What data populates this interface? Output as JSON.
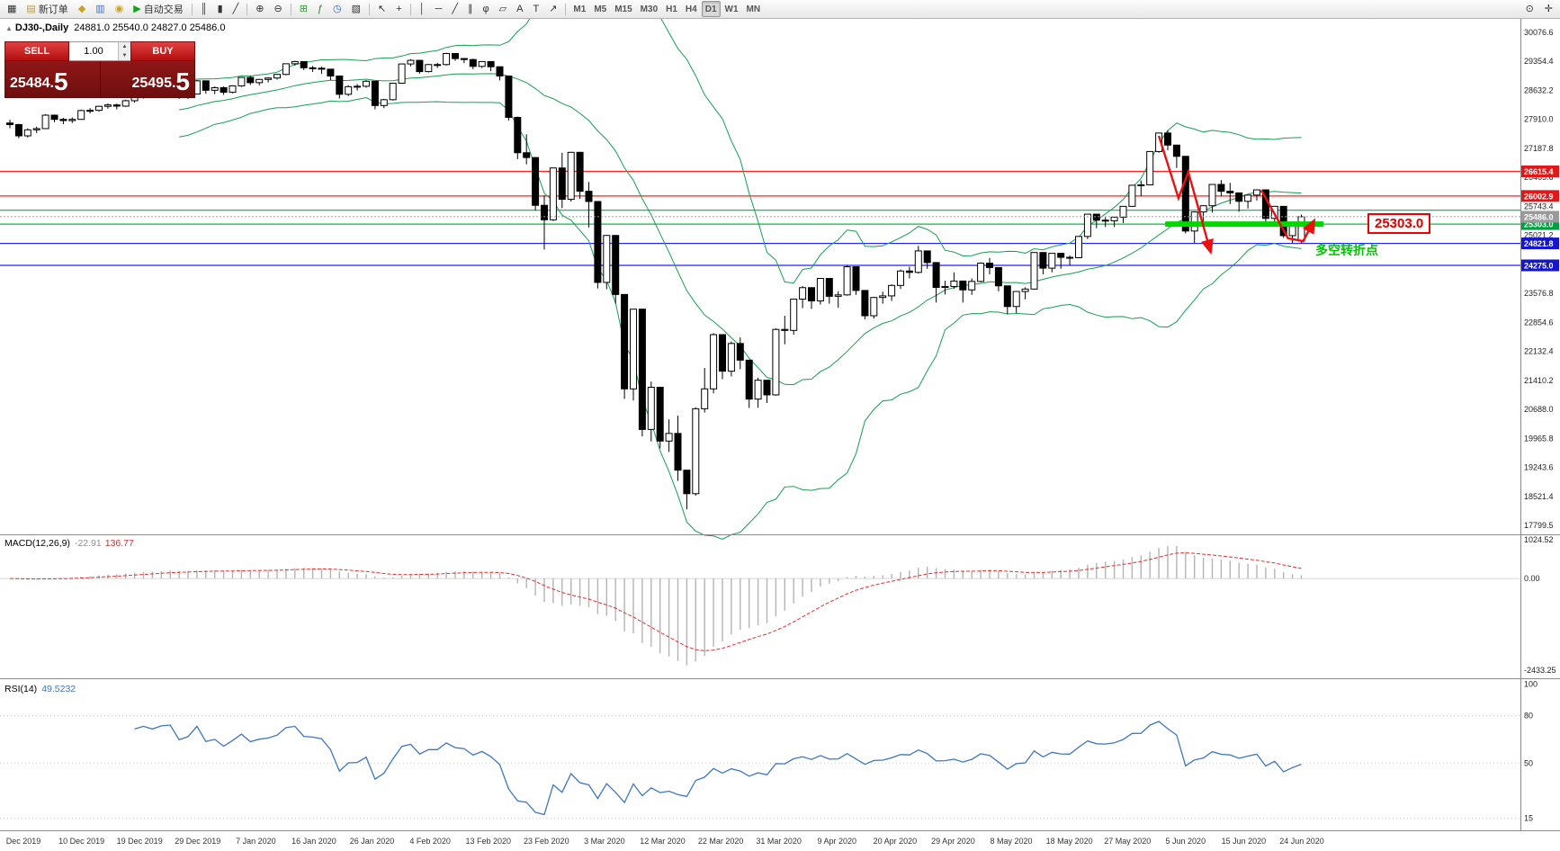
{
  "colors": {
    "band_green": "#169e50",
    "candle_up": "#ffffff",
    "candle_down": "#000000",
    "candle_border": "#000000",
    "thick_green": "#00d800",
    "arrow_red": "#e81010",
    "macd_hist": "#b4b4b4",
    "macd_signal": "#e03030",
    "rsi_blue": "#3e75c3",
    "panel_red": "#8a1515",
    "button_red": "#cc1111",
    "current_price_grey": "#9a9a9a"
  },
  "toolbar": {
    "left_items": [
      {
        "name": "chart-window-icon",
        "glyph": "▦"
      },
      {
        "name": "new-order-button",
        "glyph": "▤",
        "glyph_color": "#b59a4a",
        "label": "新订单"
      },
      {
        "name": "gold-icon",
        "glyph": "◆",
        "glyph_color": "#c9a227"
      },
      {
        "name": "report-icon",
        "glyph": "▥",
        "glyph_color": "#3d6fca"
      },
      {
        "name": "community-icon",
        "glyph": "◉",
        "glyph_color": "#c9a227"
      },
      {
        "name": "auto-trading-button",
        "glyph": "▶",
        "glyph_color": "#18a018",
        "label": "自动交易"
      },
      {
        "type": "sep"
      },
      {
        "name": "bar-chart-icon",
        "glyph": "║"
      },
      {
        "name": "candlestick-chart-icon",
        "glyph": "▮"
      },
      {
        "name": "line-chart-icon",
        "glyph": "╱"
      },
      {
        "type": "sep"
      },
      {
        "name": "zoom-in-icon",
        "glyph": "⊕"
      },
      {
        "name": "zoom-out-icon",
        "glyph": "⊖"
      },
      {
        "type": "sep"
      },
      {
        "name": "tile-windows-icon",
        "glyph": "⊞",
        "glyph_color": "#2e9e2e"
      },
      {
        "name": "indicators-icon",
        "glyph": "ƒ",
        "glyph_color": "#2e7e2e"
      },
      {
        "name": "periods-icon",
        "glyph": "◷",
        "glyph_color": "#2e5eae"
      },
      {
        "name": "template-icon",
        "glyph": "▧"
      },
      {
        "type": "sep"
      },
      {
        "name": "cursor-icon",
        "glyph": "↖"
      },
      {
        "name": "crosshair-icon",
        "glyph": "+"
      },
      {
        "type": "sep"
      },
      {
        "name": "vertical-line-icon",
        "glyph": "│"
      },
      {
        "name": "horizontal-line-icon",
        "glyph": "─"
      },
      {
        "name": "trendline-icon",
        "glyph": "╱"
      },
      {
        "name": "channel-icon",
        "glyph": "∥"
      },
      {
        "name": "fibonacci-icon",
        "glyph": "φ"
      },
      {
        "name": "shapes-icon",
        "glyph": "▱"
      },
      {
        "name": "text-icon",
        "glyph": "A"
      },
      {
        "name": "label-icon",
        "glyph": "T"
      },
      {
        "name": "arrows-icon",
        "glyph": "↗"
      },
      {
        "type": "sep"
      },
      {
        "name": "tf-m1-button",
        "label": "M1",
        "tf": true
      },
      {
        "name": "tf-m5-button",
        "label": "M5",
        "tf": true
      },
      {
        "name": "tf-m15-button",
        "label": "M15",
        "tf": true
      },
      {
        "name": "tf-m30-button",
        "label": "M30",
        "tf": true
      },
      {
        "name": "tf-h1-button",
        "label": "H1",
        "tf": true
      },
      {
        "name": "tf-h4-button",
        "label": "H4",
        "tf": true
      },
      {
        "name": "tf-d1-button",
        "label": "D1",
        "tf": true,
        "active": true
      },
      {
        "name": "tf-w1-button",
        "label": "W1",
        "tf": true
      },
      {
        "name": "tf-mn-button",
        "label": "MN",
        "tf": true
      }
    ],
    "right_items": [
      {
        "name": "search-icon",
        "glyph": "⊙"
      },
      {
        "name": "pan-icon",
        "glyph": "✛"
      }
    ]
  },
  "chart_info": {
    "symbol": "DJ30-,Daily",
    "ohlc": "24881.0 25540.0 24827.0 25486.0"
  },
  "quote_panel": {
    "sell_label": "SELL",
    "buy_label": "BUY",
    "volume": "1.00",
    "sell_price_main": "25484.",
    "sell_price_big": "5",
    "buy_price_main": "25495.",
    "buy_price_big": "5"
  },
  "annotations": {
    "price_callout": "25303.0",
    "cn_note": "多空转折点"
  },
  "macd_label": {
    "name": "MACD(12,26,9)",
    "main_value": "-22.91",
    "signal_value": "136.77"
  },
  "rsi_label": {
    "name": "RSI(14)",
    "value": "49.5232"
  },
  "chart_data": {
    "type": "candlestick",
    "title": "DJ30-,Daily",
    "price_range": [
      17622,
      30390
    ],
    "price_axis_labels": [
      {
        "v": 30076.6,
        "t": "30076.6"
      },
      {
        "v": 29354.4,
        "t": "29354.4"
      },
      {
        "v": 28632.2,
        "t": "28632.2"
      },
      {
        "v": 27910.0,
        "t": "27910.0"
      },
      {
        "v": 27187.8,
        "t": "27187.8"
      },
      {
        "v": 26465.6,
        "t": "26465.6"
      },
      {
        "v": 25743.4,
        "t": "25743.4"
      },
      {
        "v": 25021.2,
        "t": "25021.2"
      },
      {
        "v": 23576.8,
        "t": "23576.8"
      },
      {
        "v": 22854.6,
        "t": "22854.6"
      },
      {
        "v": 22132.4,
        "t": "22132.4"
      },
      {
        "v": 21410.2,
        "t": "21410.2"
      },
      {
        "v": 20688.0,
        "t": "20688.0"
      },
      {
        "v": 19965.8,
        "t": "19965.8"
      },
      {
        "v": 19243.6,
        "t": "19243.6"
      },
      {
        "v": 18521.4,
        "t": "18521.4"
      },
      {
        "v": 17799.5,
        "t": "17799.5"
      }
    ],
    "x_tick_labels": [
      "Dec 2019",
      "10 Dec 2019",
      "19 Dec 2019",
      "29 Dec 2019",
      "7 Jan 2020",
      "16 Jan 2020",
      "26 Jan 2020",
      "4 Feb 2020",
      "13 Feb 2020",
      "23 Feb 2020",
      "3 Mar 2020",
      "12 Mar 2020",
      "22 Mar 2020",
      "31 Mar 2020",
      "9 Apr 2020",
      "20 Apr 2020",
      "29 Apr 2020",
      "8 May 2020",
      "18 May 2020",
      "27 May 2020",
      "5 Jun 2020",
      "15 Jun 2020",
      "24 Jun 2020"
    ],
    "hlines": [
      {
        "price": 26615.4,
        "label": "26615.4",
        "color": "#ff2020",
        "tag": "#e01818"
      },
      {
        "price": 26002.9,
        "label": "26002.9",
        "color": "#ff2020",
        "tag": "#e01818"
      },
      {
        "price": 25648.0,
        "label": "",
        "color": "#00b050",
        "tag": ""
      },
      {
        "price": 25303.0,
        "label": "25303.0",
        "color": "#00c040",
        "tag": "#00a040"
      },
      {
        "price": 24821.8,
        "label": "24821.8",
        "color": "#2020ff",
        "tag": "#1515d0"
      },
      {
        "price": 24275.0,
        "label": "24275.0",
        "color": "#2020ff",
        "tag": "#1515d0"
      }
    ],
    "current_price": {
      "value": 25486.0,
      "label": "25486.0"
    },
    "support_segment": {
      "price": 25303.0,
      "from_bar": 129.7,
      "to_bar": 147.5
    },
    "arrows": [
      {
        "points": [
          [
            129,
            27500
          ],
          [
            131.2,
            25950
          ],
          [
            132.3,
            26600
          ],
          [
            134.8,
            24620
          ]
        ]
      },
      {
        "points": [
          [
            140.5,
            26150
          ],
          [
            143.5,
            24950
          ],
          [
            145.2,
            24880
          ],
          [
            146.4,
            25380
          ]
        ]
      }
    ],
    "macd": {
      "range": [
        -2600,
        1100
      ],
      "axis_labels": [
        {
          "v": 1024.52,
          "t": "1024.52"
        },
        {
          "v": 0,
          "t": "0.00"
        },
        {
          "v": -2433.25,
          "t": "-2433.25"
        }
      ]
    },
    "rsi": {
      "range": [
        8,
        102
      ],
      "levels": [
        80,
        50,
        15
      ],
      "axis_labels": [
        {
          "v": 100,
          "t": "100"
        },
        {
          "v": 80,
          "t": "80"
        },
        {
          "v": 50,
          "t": "50"
        },
        {
          "v": 15,
          "t": "15"
        }
      ]
    },
    "candles": [
      [
        27820,
        27900,
        27690,
        27780
      ],
      [
        27780,
        27800,
        27440,
        27500
      ],
      [
        27500,
        27690,
        27460,
        27650
      ],
      [
        27650,
        27730,
        27570,
        27680
      ],
      [
        27680,
        28040,
        27670,
        28015
      ],
      [
        28015,
        28030,
        27840,
        27910
      ],
      [
        27910,
        27950,
        27790,
        27880
      ],
      [
        27880,
        27960,
        27820,
        27910
      ],
      [
        27910,
        28150,
        27900,
        28130
      ],
      [
        28130,
        28190,
        28060,
        28135
      ],
      [
        28135,
        28250,
        28100,
        28235
      ],
      [
        28235,
        28310,
        28180,
        28270
      ],
      [
        28270,
        28300,
        28160,
        28240
      ],
      [
        28240,
        28400,
        28220,
        28375
      ],
      [
        28375,
        28470,
        28330,
        28455
      ],
      [
        28455,
        28580,
        28430,
        28550
      ],
      [
        28550,
        28580,
        28460,
        28515
      ],
      [
        28515,
        28640,
        28500,
        28620
      ],
      [
        28620,
        28690,
        28580,
        28645
      ],
      [
        28645,
        28660,
        28420,
        28460
      ],
      [
        28460,
        28570,
        28420,
        28540
      ],
      [
        28540,
        28890,
        28530,
        28870
      ],
      [
        28870,
        28880,
        28550,
        28635
      ],
      [
        28635,
        28730,
        28540,
        28700
      ],
      [
        28700,
        28730,
        28520,
        28585
      ],
      [
        28585,
        28760,
        28560,
        28745
      ],
      [
        28745,
        28970,
        28720,
        28955
      ],
      [
        28955,
        28995,
        28770,
        28825
      ],
      [
        28825,
        28920,
        28760,
        28905
      ],
      [
        28905,
        28960,
        28830,
        28940
      ],
      [
        28940,
        29040,
        28900,
        29030
      ],
      [
        29030,
        29300,
        29010,
        29295
      ],
      [
        29295,
        29370,
        29250,
        29350
      ],
      [
        29350,
        29360,
        29140,
        29195
      ],
      [
        29195,
        29240,
        29090,
        29185
      ],
      [
        29185,
        29220,
        29050,
        29160
      ],
      [
        29160,
        29170,
        28890,
        28990
      ],
      [
        28990,
        28995,
        28430,
        28535
      ],
      [
        28535,
        28760,
        28490,
        28725
      ],
      [
        28725,
        28790,
        28630,
        28735
      ],
      [
        28735,
        28890,
        28700,
        28860
      ],
      [
        28860,
        28865,
        28160,
        28255
      ],
      [
        28255,
        28420,
        28190,
        28400
      ],
      [
        28400,
        28820,
        28380,
        28810
      ],
      [
        28810,
        29300,
        28800,
        29290
      ],
      [
        29290,
        29410,
        29230,
        29380
      ],
      [
        29380,
        29390,
        29050,
        29100
      ],
      [
        29100,
        29290,
        29080,
        29275
      ],
      [
        29275,
        29320,
        29190,
        29275
      ],
      [
        29275,
        29570,
        29250,
        29550
      ],
      [
        29550,
        29560,
        29370,
        29425
      ],
      [
        29425,
        29440,
        29310,
        29400
      ],
      [
        29400,
        29420,
        29160,
        29230
      ],
      [
        29230,
        29360,
        29190,
        29350
      ],
      [
        29350,
        29360,
        29110,
        29220
      ],
      [
        29220,
        29230,
        28880,
        28990
      ],
      [
        28990,
        28995,
        27880,
        27960
      ],
      [
        27960,
        27980,
        26920,
        27080
      ],
      [
        27080,
        27540,
        26790,
        26960
      ],
      [
        26960,
        26970,
        25640,
        25770
      ],
      [
        25770,
        26020,
        24670,
        25410
      ],
      [
        25410,
        26710,
        25380,
        26700
      ],
      [
        26700,
        27080,
        25700,
        25920
      ],
      [
        25920,
        27100,
        25860,
        27090
      ],
      [
        27090,
        27100,
        25930,
        26120
      ],
      [
        26120,
        26350,
        25220,
        25865
      ],
      [
        25865,
        25870,
        23700,
        23850
      ],
      [
        23850,
        25030,
        23680,
        25020
      ],
      [
        25020,
        25030,
        23320,
        23550
      ],
      [
        23550,
        23560,
        20950,
        21200
      ],
      [
        21200,
        23190,
        20910,
        23185
      ],
      [
        23185,
        23190,
        20020,
        20190
      ],
      [
        20190,
        21380,
        19890,
        21240
      ],
      [
        21240,
        21250,
        19720,
        19900
      ],
      [
        19900,
        20440,
        19630,
        20090
      ],
      [
        20090,
        20530,
        18910,
        19175
      ],
      [
        19175,
        19180,
        18200,
        18590
      ],
      [
        18590,
        20740,
        18540,
        20705
      ],
      [
        20705,
        21720,
        20610,
        21200
      ],
      [
        21200,
        22590,
        21090,
        22550
      ],
      [
        22550,
        22560,
        21440,
        21640
      ],
      [
        21640,
        22380,
        21510,
        22330
      ],
      [
        22330,
        22480,
        21690,
        21915
      ],
      [
        21915,
        21920,
        20725,
        20945
      ],
      [
        20945,
        21480,
        20730,
        21415
      ],
      [
        21415,
        21420,
        20850,
        21050
      ],
      [
        21050,
        22710,
        21030,
        22680
      ],
      [
        22680,
        23020,
        22310,
        22655
      ],
      [
        22655,
        23440,
        22550,
        23435
      ],
      [
        23435,
        23760,
        23210,
        23720
      ],
      [
        23720,
        23730,
        23190,
        23390
      ],
      [
        23390,
        23960,
        23300,
        23950
      ],
      [
        23950,
        23960,
        23320,
        23505
      ],
      [
        23505,
        23630,
        23220,
        23540
      ],
      [
        23540,
        24280,
        23520,
        24240
      ],
      [
        24240,
        24250,
        23540,
        23650
      ],
      [
        23650,
        23660,
        22930,
        23020
      ],
      [
        23020,
        23490,
        22950,
        23475
      ],
      [
        23475,
        23620,
        23320,
        23515
      ],
      [
        23515,
        23800,
        23390,
        23775
      ],
      [
        23775,
        24170,
        23690,
        24135
      ],
      [
        24135,
        24240,
        23950,
        24100
      ],
      [
        24100,
        24760,
        24070,
        24635
      ],
      [
        24635,
        24640,
        24190,
        24345
      ],
      [
        24345,
        24350,
        23350,
        23725
      ],
      [
        23725,
        23890,
        23550,
        23750
      ],
      [
        23750,
        24100,
        23690,
        23885
      ],
      [
        23885,
        23890,
        23350,
        23665
      ],
      [
        23665,
        23950,
        23540,
        23875
      ],
      [
        23875,
        24350,
        23850,
        24330
      ],
      [
        24330,
        24460,
        24050,
        24220
      ],
      [
        24220,
        24230,
        23630,
        23765
      ],
      [
        23765,
        23770,
        23060,
        23250
      ],
      [
        23250,
        23630,
        23090,
        23625
      ],
      [
        23625,
        23730,
        23430,
        23685
      ],
      [
        23685,
        24600,
        23670,
        24595
      ],
      [
        24595,
        24600,
        24050,
        24205
      ],
      [
        24205,
        24580,
        24100,
        24575
      ],
      [
        24575,
        24580,
        24190,
        24475
      ],
      [
        24475,
        24520,
        24280,
        24465
      ],
      [
        24465,
        25000,
        24450,
        24995
      ],
      [
        24995,
        25550,
        24930,
        25550
      ],
      [
        25550,
        25560,
        25200,
        25400
      ],
      [
        25400,
        25470,
        25230,
        25385
      ],
      [
        25385,
        25480,
        25230,
        25475
      ],
      [
        25475,
        25750,
        25330,
        25745
      ],
      [
        25745,
        26280,
        25730,
        26270
      ],
      [
        26270,
        26390,
        26000,
        26280
      ],
      [
        26280,
        27120,
        26270,
        27110
      ],
      [
        27110,
        27580,
        27080,
        27570
      ],
      [
        27570,
        27640,
        27140,
        27270
      ],
      [
        27270,
        27280,
        26700,
        26990
      ],
      [
        26990,
        27000,
        25070,
        25130
      ],
      [
        25130,
        25620,
        24830,
        25605
      ],
      [
        25605,
        25770,
        25330,
        25760
      ],
      [
        25760,
        26300,
        25590,
        26290
      ],
      [
        26290,
        26400,
        25990,
        26120
      ],
      [
        26120,
        26330,
        25800,
        26080
      ],
      [
        26080,
        26090,
        25610,
        25870
      ],
      [
        25870,
        26030,
        25690,
        26025
      ],
      [
        26025,
        26160,
        25890,
        26155
      ],
      [
        26155,
        26160,
        25330,
        25445
      ],
      [
        25445,
        25750,
        25290,
        25745
      ],
      [
        25745,
        25750,
        24960,
        25015
      ],
      [
        25015,
        25290,
        24830,
        25280
      ],
      [
        24881,
        25540,
        24827,
        25486
      ]
    ]
  }
}
